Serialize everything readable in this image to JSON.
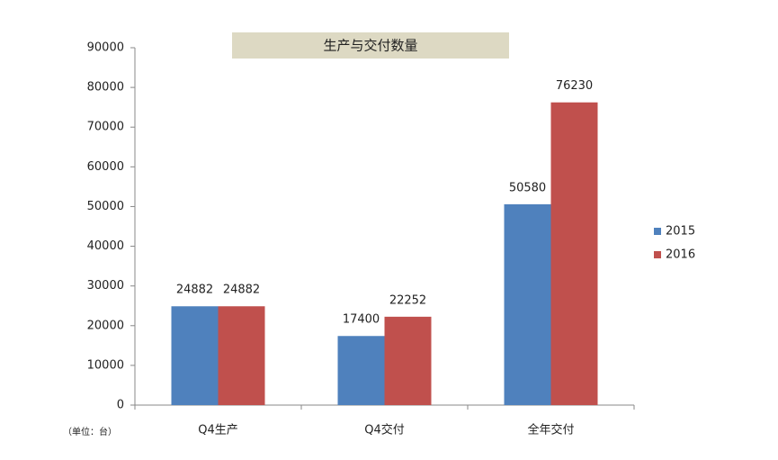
{
  "chart_data": {
    "type": "bar",
    "title": "生产与交付数量",
    "unit_note": "（单位：台）",
    "categories": [
      "Q4生产",
      "Q4交付",
      "全年交付"
    ],
    "series": [
      {
        "name": "2015",
        "color": "#4f81bd",
        "values": [
          24882,
          17400,
          50580
        ]
      },
      {
        "name": "2016",
        "color": "#c0504d",
        "values": [
          24882,
          22252,
          76230
        ]
      }
    ],
    "ylim": [
      0,
      90000
    ],
    "yticks": [
      0,
      10000,
      20000,
      30000,
      40000,
      50000,
      60000,
      70000,
      80000,
      90000
    ],
    "grid": false,
    "legend": "right"
  }
}
